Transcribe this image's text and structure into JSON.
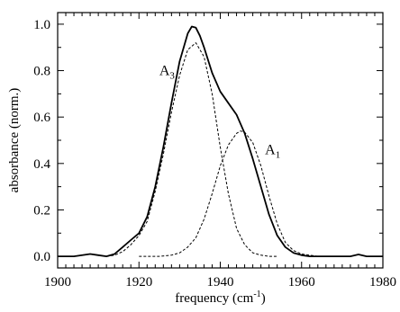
{
  "chart_data": {
    "type": "line",
    "xlabel": "frequency (cm",
    "xlabel_sup": "-1",
    "xlabel_close": ")",
    "ylabel": "absorbance (norm.)",
    "xlim": [
      1900,
      1980
    ],
    "ylim": [
      -0.05,
      1.05
    ],
    "x_ticks": [
      1900,
      1920,
      1940,
      1960,
      1980
    ],
    "x_tick_labels": [
      "1900",
      "1920",
      "1940",
      "1960",
      "1980"
    ],
    "x_minor_step": 2,
    "y_ticks": [
      0.0,
      0.2,
      0.4,
      0.6,
      0.8,
      1.0
    ],
    "y_tick_labels": [
      "0.0",
      "0.2",
      "0.4",
      "0.6",
      "0.8",
      "1.0"
    ],
    "y_minor_step": 0.1,
    "grid": false,
    "legend": "none",
    "series": [
      {
        "style": "solid",
        "x": [
          1900,
          1904,
          1908,
          1910,
          1912,
          1914,
          1916,
          1918,
          1920,
          1922,
          1924,
          1926,
          1928,
          1930,
          1932,
          1933,
          1934,
          1935,
          1936,
          1938,
          1940,
          1942,
          1944,
          1946,
          1948,
          1950,
          1952,
          1954,
          1956,
          1958,
          1960,
          1962,
          1964,
          1968,
          1972,
          1974,
          1976,
          1980
        ],
        "values": [
          0.0,
          0.0,
          0.01,
          0.005,
          0.0,
          0.01,
          0.04,
          0.07,
          0.1,
          0.17,
          0.3,
          0.47,
          0.66,
          0.84,
          0.96,
          0.99,
          0.985,
          0.95,
          0.9,
          0.79,
          0.71,
          0.66,
          0.61,
          0.53,
          0.42,
          0.3,
          0.18,
          0.09,
          0.04,
          0.015,
          0.005,
          0.0,
          0.0,
          0.0,
          0.0,
          0.008,
          0.0,
          0.0
        ]
      },
      {
        "style": "dashed",
        "x": [
          1912,
          1914,
          1916,
          1918,
          1920,
          1922,
          1924,
          1926,
          1928,
          1930,
          1932,
          1934,
          1936,
          1938,
          1940,
          1942,
          1944,
          1946,
          1948,
          1950,
          1952,
          1954
        ],
        "values": [
          0.0,
          0.005,
          0.02,
          0.05,
          0.09,
          0.15,
          0.28,
          0.44,
          0.62,
          0.78,
          0.89,
          0.92,
          0.86,
          0.7,
          0.47,
          0.27,
          0.12,
          0.05,
          0.015,
          0.005,
          0.0,
          0.0
        ]
      },
      {
        "style": "dashed",
        "x": [
          1920,
          1925,
          1928,
          1930,
          1932,
          1934,
          1936,
          1938,
          1940,
          1942,
          1944,
          1945,
          1946,
          1948,
          1950,
          1952,
          1954,
          1956,
          1958,
          1960,
          1964,
          1970
        ],
        "values": [
          0.0,
          0.0,
          0.005,
          0.015,
          0.04,
          0.08,
          0.16,
          0.27,
          0.39,
          0.48,
          0.53,
          0.54,
          0.535,
          0.49,
          0.39,
          0.26,
          0.14,
          0.06,
          0.025,
          0.01,
          0.0,
          0.0
        ]
      }
    ],
    "annotations": [
      {
        "main": "A",
        "sub": "3",
        "x": 1925,
        "y": 0.78
      },
      {
        "main": "A",
        "sub": "1",
        "x": 1951,
        "y": 0.44
      }
    ]
  }
}
